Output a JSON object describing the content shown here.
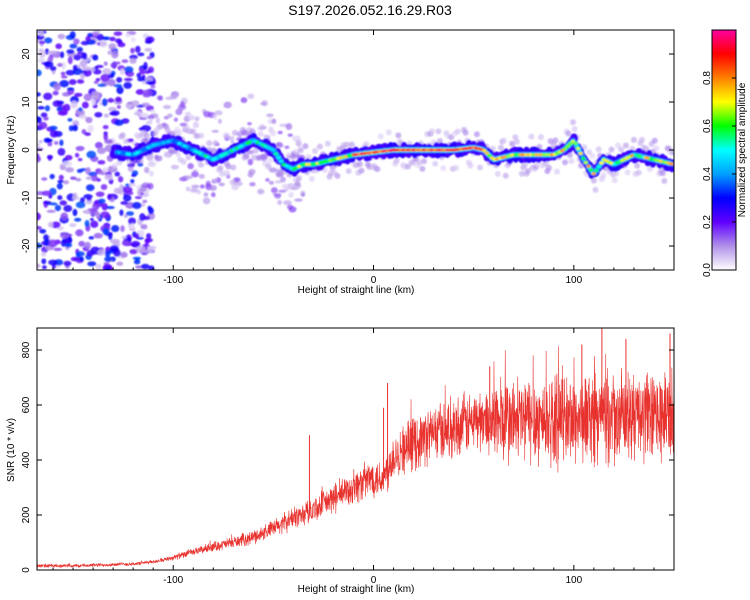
{
  "figure_title": "S197.2026.052.16.29.R03",
  "chart_data": [
    {
      "type": "heatmap",
      "title": "",
      "xlabel": "Height of straight line (km)",
      "ylabel": "Frequency (Hz)",
      "xlim": [
        -168,
        150
      ],
      "ylim": [
        -25,
        25
      ],
      "xticks": [
        -100,
        0,
        100
      ],
      "xtick_labels": [
        "-100",
        "0",
        "100"
      ],
      "yticks": [
        20,
        10,
        0,
        -10,
        -20
      ],
      "ytick_labels": [
        "20",
        "10",
        "0",
        "-10",
        "-20"
      ],
      "ridge": {
        "x": [
          -135,
          -120,
          -110,
          -100,
          -90,
          -80,
          -70,
          -60,
          -50,
          -45,
          -40,
          -35,
          -30,
          -20,
          -10,
          0,
          10,
          20,
          30,
          40,
          50,
          55,
          60,
          70,
          80,
          90,
          95,
          100,
          105,
          110,
          115,
          120,
          130,
          140,
          150
        ],
        "y": [
          0,
          -1,
          1,
          2,
          0,
          -2,
          0,
          2,
          0,
          -3,
          -4,
          -3,
          -3,
          -2,
          -1,
          -0.5,
          0,
          0,
          0,
          0,
          0.5,
          0,
          -2,
          -1,
          -1,
          -1,
          0,
          2,
          -2,
          -5,
          -2,
          -3,
          -1,
          -2,
          -3
        ]
      },
      "colorbar": {
        "label": "Normalized spectral amplitude",
        "range": [
          0,
          1
        ],
        "ticks": [
          0.0,
          0.2,
          0.4,
          0.6,
          0.8
        ],
        "tick_labels": [
          "0.0",
          "0.2",
          "0.4",
          "0.6",
          "0.8"
        ],
        "colors": [
          "#ffffff",
          "#b090e8",
          "#6000ff",
          "#0000ff",
          "#00a0ff",
          "#00ffff",
          "#00ff00",
          "#ffff00",
          "#ff8000",
          "#ff0000",
          "#ff00a0"
        ]
      }
    },
    {
      "type": "line",
      "title": "",
      "xlabel": "Height of straight line (km)",
      "ylabel": "SNR (10 * v/v)",
      "xlim": [
        -168,
        150
      ],
      "ylim": [
        0,
        880
      ],
      "xticks": [
        -100,
        0,
        100
      ],
      "xtick_labels": [
        "-100",
        "0",
        "100"
      ],
      "yticks": [
        0,
        200,
        400,
        600,
        800
      ],
      "ytick_labels": [
        "0",
        "200",
        "400",
        "600",
        "800"
      ],
      "line_color": "#e8322e",
      "series": [
        {
          "name": "SNR",
          "x": [
            -168,
            -150,
            -130,
            -120,
            -110,
            -100,
            -90,
            -80,
            -70,
            -60,
            -50,
            -40,
            -30,
            -20,
            -10,
            0,
            5,
            10,
            20,
            30,
            40,
            50,
            60,
            70,
            80,
            90,
            100,
            110,
            120,
            130,
            140,
            150
          ],
          "y": [
            15,
            15,
            20,
            22,
            30,
            45,
            65,
            85,
            100,
            120,
            150,
            190,
            220,
            260,
            300,
            340,
            330,
            420,
            460,
            500,
            520,
            540,
            545,
            540,
            550,
            545,
            550,
            560,
            550,
            560,
            555,
            560
          ]
        }
      ],
      "spikes": [
        {
          "x": -32,
          "y": 490
        },
        {
          "x": 7,
          "y": 680
        },
        {
          "x": 5,
          "y": 590
        },
        {
          "x": 58,
          "y": 740
        },
        {
          "x": 104,
          "y": 820
        },
        {
          "x": 114,
          "y": 880
        },
        {
          "x": 126,
          "y": 840
        },
        {
          "x": 148,
          "y": 860
        }
      ]
    }
  ]
}
